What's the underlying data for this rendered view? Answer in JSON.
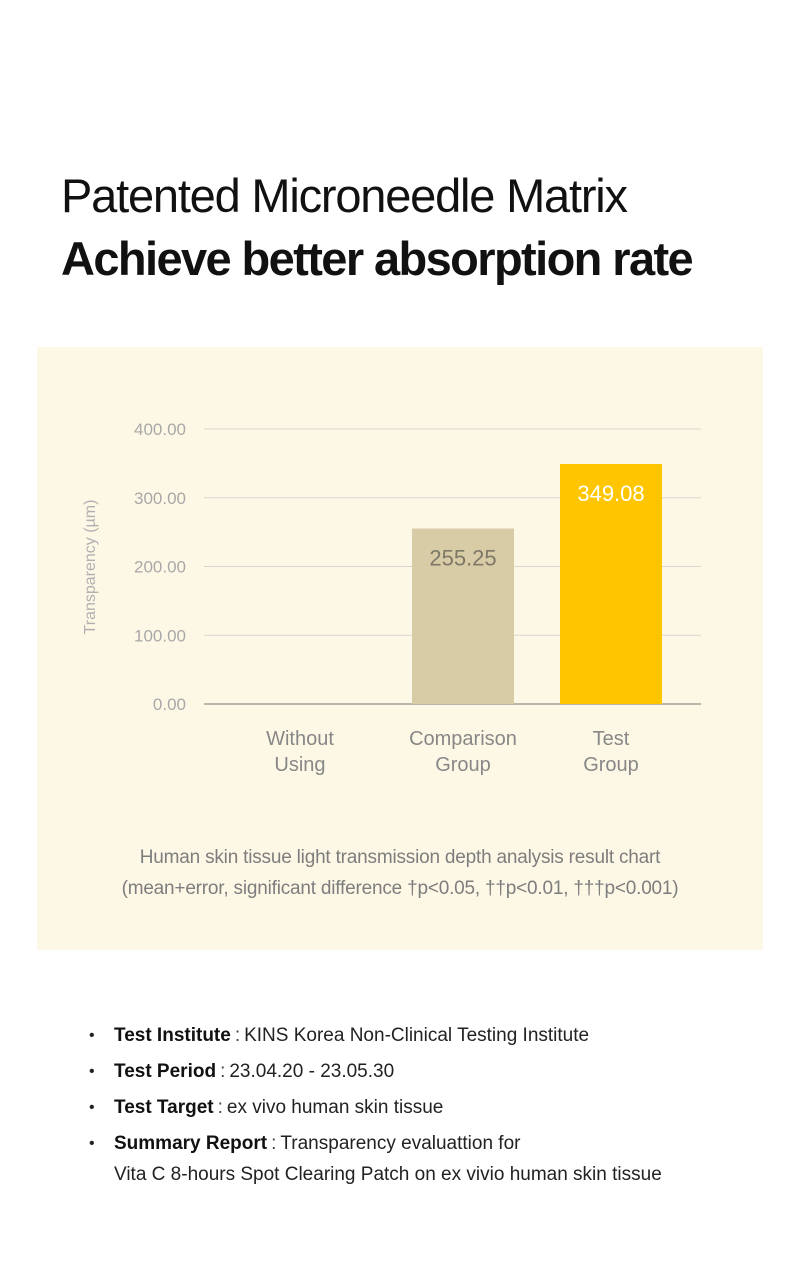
{
  "headline": {
    "line1": "Patented Microneedle Matrix",
    "line2": "Achieve better absorption rate"
  },
  "chart_data": {
    "type": "bar",
    "categories": [
      [
        "Without",
        "Using"
      ],
      [
        "Comparison",
        "Group"
      ],
      [
        "Test",
        "Group"
      ]
    ],
    "values": [
      0,
      255.25,
      349.08
    ],
    "data_labels": [
      "",
      "255.25",
      "349.08"
    ],
    "bar_colors": [
      "#d8cca6",
      "#d8cca6",
      "#ffc600"
    ],
    "label_colors": [
      "#7d7868",
      "#7d7868",
      "#ffffff"
    ],
    "ylabel": "Transparency (µm)",
    "yticks": [
      0,
      100,
      200,
      300,
      400
    ],
    "ytick_labels": [
      "0.00",
      "100.00",
      "200.00",
      "300.00",
      "400.00"
    ],
    "ylim": [
      0,
      400
    ],
    "grid": true,
    "caption": [
      "Human skin tissue light transmission depth analysis result chart",
      "(mean+error, significant difference †p<0.05, ††p<0.01, †††p<0.001)"
    ]
  },
  "info": [
    {
      "label": "Test Institute",
      "sep": ":",
      "value": "KINS Korea Non-Clinical Testing Institute",
      "value2": ""
    },
    {
      "label": "Test Period",
      "sep": ":",
      "value": "23.04.20 - 23.05.30",
      "value2": ""
    },
    {
      "label": "Test Target",
      "sep": ":",
      "value": "ex vivo human skin tissue",
      "value2": ""
    },
    {
      "label": "Summary Report",
      "sep": ":",
      "value": "Transparency evaluattion for",
      "value2": "Vita C 8-hours Spot Clearing Patch on ex vivio human skin tissue"
    }
  ]
}
